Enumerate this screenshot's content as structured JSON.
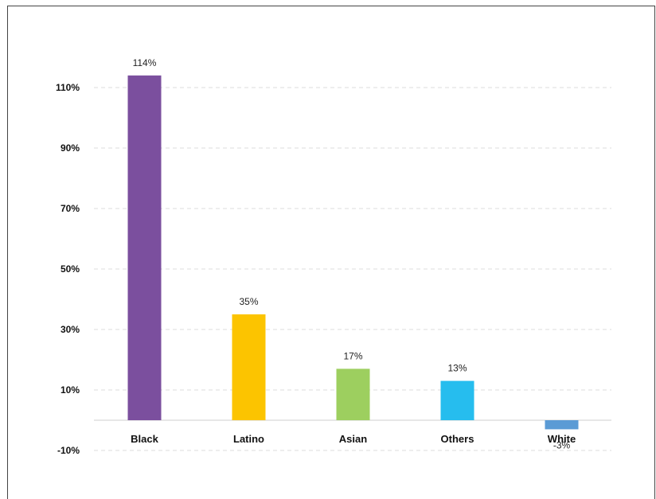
{
  "chart_data": {
    "type": "bar",
    "title": "",
    "xlabel": "",
    "ylabel": "",
    "categories": [
      "Black",
      "Latino",
      "Asian",
      "Others",
      "White"
    ],
    "values": [
      114,
      35,
      17,
      13,
      -3
    ],
    "data_labels": [
      "114%",
      "35%",
      "17%",
      "13%",
      "-3%"
    ],
    "colors": [
      "#7b4f9e",
      "#fcc400",
      "#9dcf5f",
      "#26bdee",
      "#5b9bd5"
    ],
    "ylim": [
      -10,
      118
    ],
    "y_ticks": [
      -10,
      10,
      30,
      50,
      70,
      90,
      110
    ],
    "y_tick_labels": [
      "-10%",
      "10%",
      "30%",
      "50%",
      "70%",
      "90%",
      "110%"
    ],
    "grid": true,
    "legend": "none"
  }
}
